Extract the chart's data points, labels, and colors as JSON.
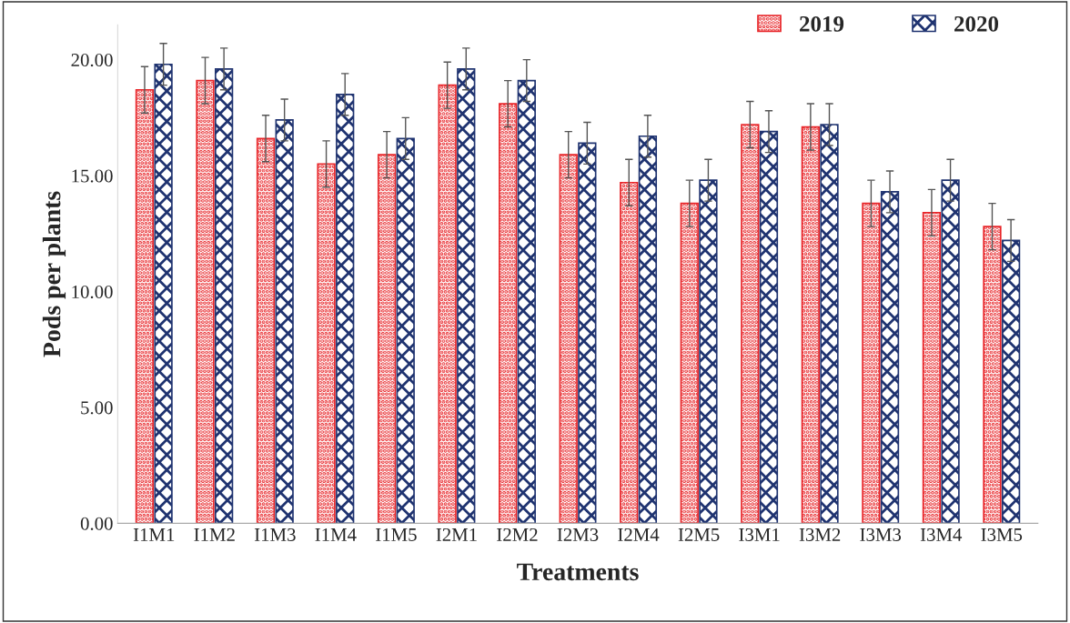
{
  "chart_data": {
    "type": "bar",
    "xlabel": "Treatments",
    "ylabel": "Pods per plants",
    "categories": [
      "I1M1",
      "I1M2",
      "I1M3",
      "I1M4",
      "I1M5",
      "I2M1",
      "I2M2",
      "I2M3",
      "I2M4",
      "I2M5",
      "I3M1",
      "I3M2",
      "I3M3",
      "I3M4",
      "I3M5"
    ],
    "series": [
      {
        "name": "2019",
        "color": "#e8262a",
        "values": [
          18.7,
          19.1,
          16.6,
          15.5,
          15.9,
          18.9,
          18.1,
          15.9,
          14.7,
          13.8,
          17.2,
          17.1,
          13.8,
          13.4,
          12.8
        ],
        "errors": [
          1.0,
          1.0,
          1.0,
          1.0,
          1.0,
          1.0,
          1.0,
          1.0,
          1.0,
          1.0,
          1.0,
          1.0,
          1.0,
          1.0,
          1.0
        ]
      },
      {
        "name": "2020",
        "color": "#1f3370",
        "values": [
          19.8,
          19.6,
          17.4,
          18.5,
          16.6,
          19.6,
          19.1,
          16.4,
          16.7,
          14.8,
          16.9,
          17.2,
          14.3,
          14.8,
          12.2
        ],
        "errors": [
          0.9,
          0.9,
          0.9,
          0.9,
          0.9,
          0.9,
          0.9,
          0.9,
          0.9,
          0.9,
          0.9,
          0.9,
          0.9,
          0.9,
          0.9
        ]
      }
    ],
    "ylim": [
      0,
      21.5
    ],
    "yticks": [
      {
        "value": 0,
        "label": "0.00"
      },
      {
        "value": 5,
        "label": "5.00"
      },
      {
        "value": 10,
        "label": "10.00"
      },
      {
        "value": 15,
        "label": "15.00"
      },
      {
        "value": 20,
        "label": "20.00"
      }
    ],
    "grid": false,
    "legend": "top right"
  }
}
